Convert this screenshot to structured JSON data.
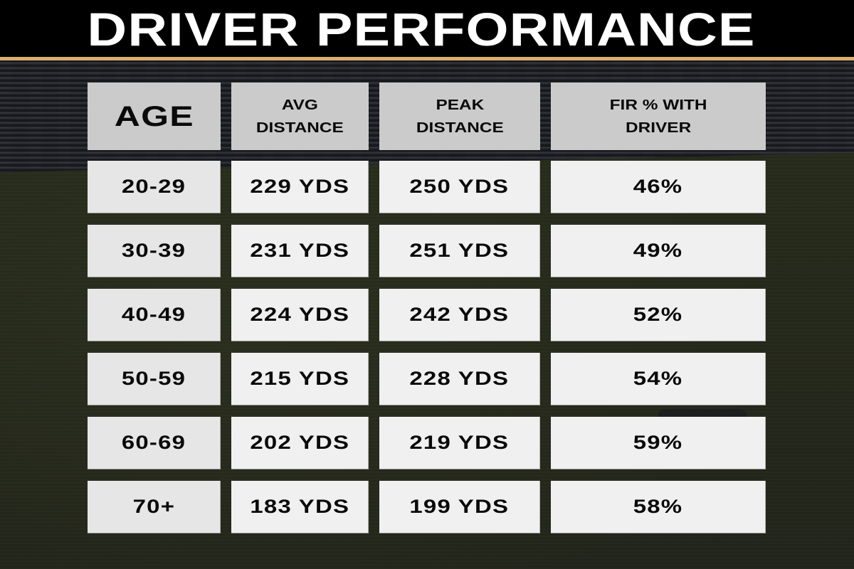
{
  "header": {
    "title": "DRIVER PERFORMANCE",
    "accent_color": "#deae6c",
    "background_color": "#000000"
  },
  "table": {
    "columns": [
      {
        "key": "age",
        "label": "AGE"
      },
      {
        "key": "avg_distance",
        "label_line1": "AVG",
        "label_line2": "DISTANCE"
      },
      {
        "key": "peak_distance",
        "label_line1": "PEAK",
        "label_line2": "DISTANCE"
      },
      {
        "key": "fir_pct",
        "label_line1": "FIR % WITH",
        "label_line2": "DRIVER"
      }
    ],
    "rows": [
      {
        "age": "20-29",
        "avg_distance": "229 YDS",
        "peak_distance": "250 YDS",
        "fir_pct": "46%"
      },
      {
        "age": "30-39",
        "avg_distance": "231 YDS",
        "peak_distance": "251 YDS",
        "fir_pct": "49%"
      },
      {
        "age": "40-49",
        "avg_distance": "224 YDS",
        "peak_distance": "242 YDS",
        "fir_pct": "52%"
      },
      {
        "age": "50-59",
        "avg_distance": "215 YDS",
        "peak_distance": "228 YDS",
        "fir_pct": "54%"
      },
      {
        "age": "60-69",
        "avg_distance": "202 YDS",
        "peak_distance": "219 YDS",
        "fir_pct": "59%"
      },
      {
        "age": "70+",
        "avg_distance": "183 YDS",
        "peak_distance": "199 YDS",
        "fir_pct": "58%"
      }
    ],
    "colors": {
      "header_cell": "#cbcbcb",
      "age_cell": "#e6e6e6",
      "data_cell": "#f0f0f0",
      "text": "#0a0a0a"
    }
  },
  "chart_data": {
    "type": "table",
    "title": "DRIVER PERFORMANCE",
    "columns": [
      "AGE",
      "AVG DISTANCE",
      "PEAK DISTANCE",
      "FIR % WITH DRIVER"
    ],
    "categories": [
      "20-29",
      "30-39",
      "40-49",
      "50-59",
      "60-69",
      "70+"
    ],
    "series": [
      {
        "name": "AVG DISTANCE (YDS)",
        "values": [
          229,
          231,
          224,
          215,
          202,
          183
        ]
      },
      {
        "name": "PEAK DISTANCE (YDS)",
        "values": [
          250,
          251,
          242,
          228,
          219,
          199
        ]
      },
      {
        "name": "FIR % WITH DRIVER",
        "values": [
          46,
          49,
          52,
          54,
          59,
          58
        ]
      }
    ]
  }
}
